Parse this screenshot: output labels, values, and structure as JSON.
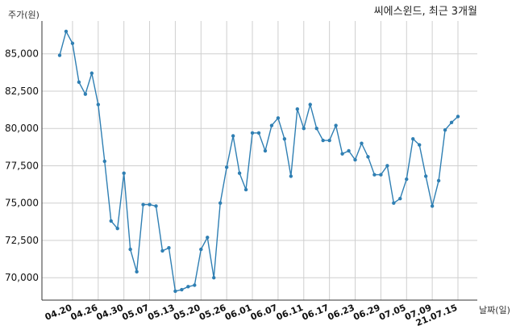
{
  "chart_data": {
    "type": "line",
    "title": "씨에스윈드, 최근 3개월",
    "ylabel": "주가(원)",
    "xlabel": "날짜(일)",
    "ylim": [
      68500,
      87200
    ],
    "yticks": [
      70000,
      72500,
      75000,
      77500,
      80000,
      82500,
      85000
    ],
    "ytick_labels": [
      "70,000",
      "72,500",
      "75,000",
      "77,500",
      "80,000",
      "82,500",
      "85,000"
    ],
    "xticks": [
      {
        "index": 2,
        "label": "04.20"
      },
      {
        "index": 6,
        "label": "04.26"
      },
      {
        "index": 10,
        "label": "04.30"
      },
      {
        "index": 14,
        "label": "05.07"
      },
      {
        "index": 18,
        "label": "05.13"
      },
      {
        "index": 22,
        "label": "05.20"
      },
      {
        "index": 26,
        "label": "05.26"
      },
      {
        "index": 30,
        "label": "06.01"
      },
      {
        "index": 34,
        "label": "06.07"
      },
      {
        "index": 38,
        "label": "06.11"
      },
      {
        "index": 42,
        "label": "06.17"
      },
      {
        "index": 46,
        "label": "06.23"
      },
      {
        "index": 50,
        "label": "06.29"
      },
      {
        "index": 54,
        "label": "07.05"
      },
      {
        "index": 58,
        "label": "07.09"
      },
      {
        "index": 62,
        "label": "21.07.15"
      }
    ],
    "grid": true,
    "values": [
      84900,
      86500,
      85700,
      83100,
      82300,
      83700,
      81600,
      77800,
      73800,
      73300,
      77000,
      71900,
      70400,
      74900,
      74900,
      74800,
      71800,
      72000,
      69100,
      69200,
      69400,
      69500,
      71900,
      72700,
      70000,
      75000,
      77400,
      79500,
      77000,
      75900,
      79700,
      79700,
      78500,
      80200,
      80700,
      79300,
      76800,
      81300,
      80000,
      81600,
      80000,
      79200,
      79200,
      80200,
      78300,
      78500,
      77900,
      79000,
      78100,
      76900,
      76900,
      77500,
      75000,
      75300,
      76600,
      79300,
      78900,
      76800,
      74800,
      76500,
      79900,
      80400,
      80800
    ]
  }
}
